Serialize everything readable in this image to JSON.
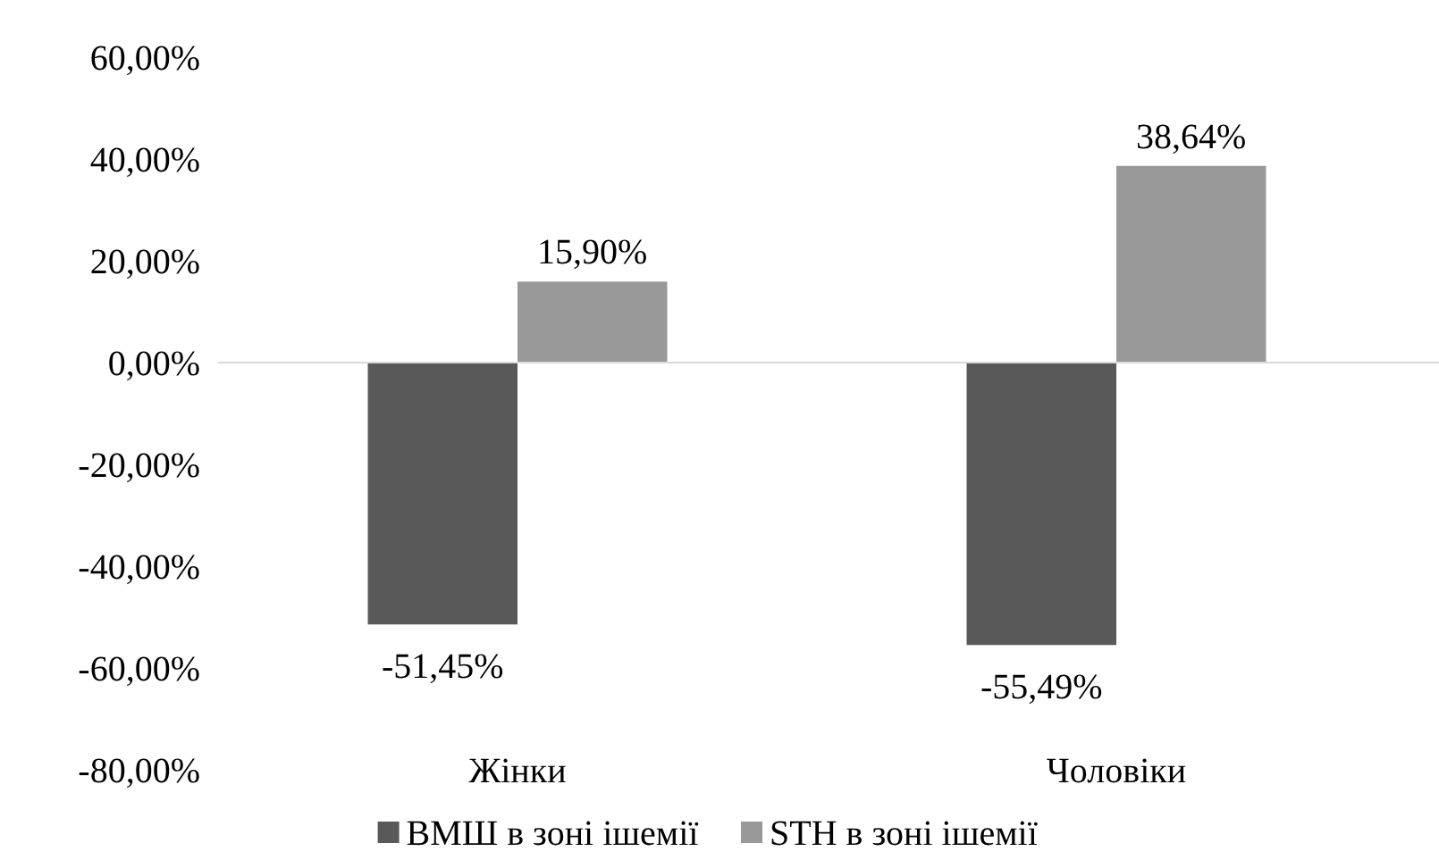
{
  "chart_data": {
    "type": "bar",
    "categories": [
      "Жінки",
      "Чоловіки"
    ],
    "series": [
      {
        "name": "ВМШ в зоні ішемії",
        "color": "#595959",
        "values": [
          -51.45,
          -55.49
        ],
        "value_labels": [
          "-51,45%",
          "-55,49%"
        ]
      },
      {
        "name": "STH в зоні ішемії",
        "color": "#999999",
        "values": [
          15.9,
          38.64
        ],
        "value_labels": [
          "15,90%",
          "38,64%"
        ]
      }
    ],
    "ylim": [
      -80,
      60
    ],
    "yticks": [
      {
        "value": -80,
        "label": "-80,00%"
      },
      {
        "value": -60,
        "label": "-60,00%"
      },
      {
        "value": -40,
        "label": "-40,00%"
      },
      {
        "value": -20,
        "label": "-20,00%"
      },
      {
        "value": 0,
        "label": "0,00%"
      },
      {
        "value": 20,
        "label": "20,00%"
      },
      {
        "value": 40,
        "label": "40,00%"
      },
      {
        "value": 60,
        "label": "60,00%"
      }
    ],
    "legend": "bottom"
  }
}
